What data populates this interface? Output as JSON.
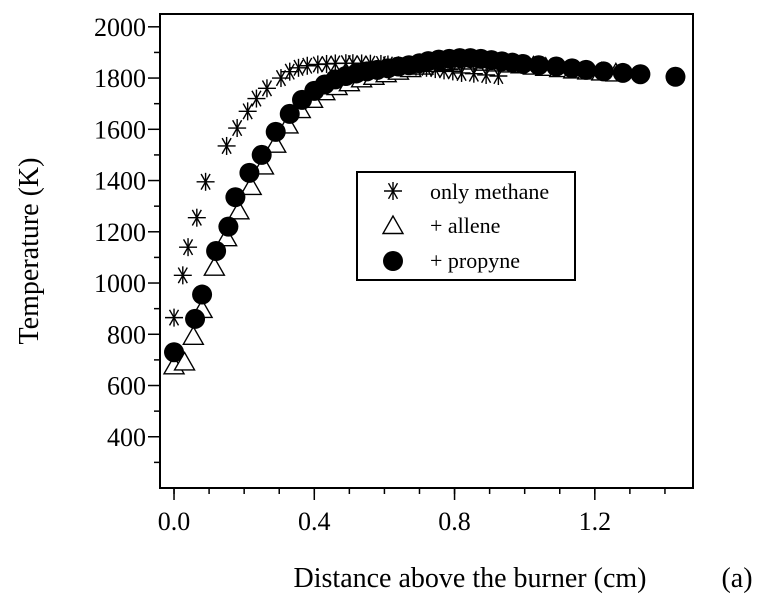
{
  "chart_data": {
    "type": "scatter",
    "xlabel": "Distance above the burner (cm)",
    "ylabel": "Temperature (K)",
    "panel_label": "(a)",
    "xlim": [
      -0.04,
      1.48
    ],
    "ylim": [
      200,
      2050
    ],
    "xticks": [
      0.0,
      0.4,
      0.8,
      1.2
    ],
    "xtick_labels": [
      "0.0",
      "0.4",
      "0.8",
      "1.2"
    ],
    "xminor": [
      0.0,
      0.1,
      0.2,
      0.3,
      0.4,
      0.5,
      0.6,
      0.7,
      0.8,
      0.9,
      1.0,
      1.1,
      1.2,
      1.3,
      1.4
    ],
    "yticks": [
      400,
      600,
      800,
      1000,
      1200,
      1400,
      1600,
      1800,
      2000
    ],
    "ytick_labels": [
      "400",
      "600",
      "800",
      "1000",
      "1200",
      "1400",
      "1600",
      "1800",
      "2000"
    ],
    "legend_position": "center",
    "series": [
      {
        "name": "only methane",
        "marker": "asterisk",
        "x": [
          0.0,
          0.025,
          0.04,
          0.065,
          0.09,
          0.15,
          0.18,
          0.21,
          0.235,
          0.265,
          0.305,
          0.33,
          0.355,
          0.38,
          0.41,
          0.435,
          0.46,
          0.49,
          0.51,
          0.535,
          0.56,
          0.59,
          0.61,
          0.64,
          0.665,
          0.69,
          0.72,
          0.745,
          0.77,
          0.795,
          0.82,
          0.855,
          0.89,
          0.925
        ],
        "y": [
          865,
          1030,
          1140,
          1255,
          1395,
          1535,
          1605,
          1670,
          1720,
          1760,
          1800,
          1825,
          1840,
          1848,
          1853,
          1855,
          1857,
          1858,
          1858,
          1857,
          1856,
          1855,
          1853,
          1850,
          1848,
          1845,
          1840,
          1835,
          1830,
          1826,
          1820,
          1817,
          1812,
          1808
        ]
      },
      {
        "name": "+ allene",
        "marker": "triangle-open",
        "x": [
          0.0,
          0.03,
          0.055,
          0.08,
          0.115,
          0.15,
          0.185,
          0.22,
          0.255,
          0.29,
          0.325,
          0.36,
          0.395,
          0.43,
          0.465,
          0.5,
          0.535,
          0.57,
          0.605,
          0.64,
          0.675,
          0.71,
          0.745,
          0.78,
          0.815,
          0.85,
          0.885,
          0.92,
          0.955,
          0.99,
          1.025,
          1.06,
          1.1,
          1.14,
          1.18,
          1.22,
          1.26
        ],
        "y": [
          675,
          690,
          790,
          895,
          1060,
          1175,
          1280,
          1375,
          1455,
          1540,
          1615,
          1675,
          1715,
          1745,
          1765,
          1780,
          1795,
          1805,
          1815,
          1825,
          1835,
          1845,
          1855,
          1862,
          1865,
          1865,
          1860,
          1857,
          1853,
          1850,
          1845,
          1840,
          1835,
          1830,
          1826,
          1822,
          1818
        ]
      },
      {
        "name": "+ propyne",
        "marker": "circle-filled",
        "x": [
          0.0,
          0.06,
          0.08,
          0.12,
          0.155,
          0.175,
          0.215,
          0.25,
          0.29,
          0.33,
          0.365,
          0.4,
          0.43,
          0.46,
          0.49,
          0.52,
          0.55,
          0.58,
          0.61,
          0.64,
          0.67,
          0.7,
          0.725,
          0.755,
          0.785,
          0.815,
          0.845,
          0.875,
          0.905,
          0.935,
          0.965,
          0.995,
          1.04,
          1.09,
          1.135,
          1.175,
          1.225,
          1.28,
          1.33,
          1.43
        ],
        "y": [
          730,
          860,
          955,
          1125,
          1220,
          1335,
          1430,
          1500,
          1590,
          1660,
          1715,
          1750,
          1775,
          1795,
          1808,
          1818,
          1826,
          1832,
          1838,
          1845,
          1850,
          1858,
          1866,
          1872,
          1875,
          1878,
          1878,
          1875,
          1870,
          1865,
          1860,
          1855,
          1850,
          1845,
          1838,
          1832,
          1826,
          1820,
          1815,
          1805
        ]
      }
    ]
  }
}
